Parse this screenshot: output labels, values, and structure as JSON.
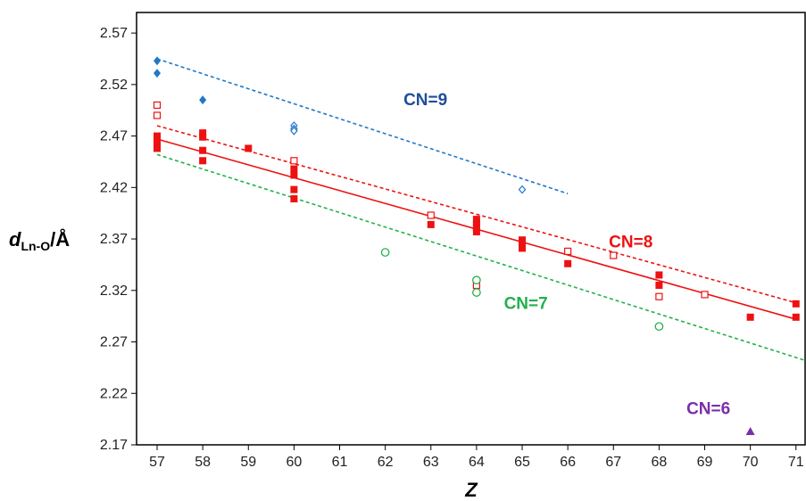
{
  "chart_data": {
    "type": "scatter",
    "title": "",
    "xlabel": "Z",
    "ylabel": {
      "main": "d",
      "sub": "Ln-O",
      "unit": "/Å"
    },
    "xlim": [
      56.55,
      71.2
    ],
    "ylim": [
      2.17,
      2.59
    ],
    "x_ticks": [
      "57",
      "58",
      "59",
      "60",
      "61",
      "62",
      "63",
      "64",
      "65",
      "66",
      "67",
      "68",
      "69",
      "70",
      "71"
    ],
    "y_ticks": [
      "2.17",
      "2.22",
      "2.27",
      "2.32",
      "2.37",
      "2.42",
      "2.47",
      "2.52",
      "2.57"
    ],
    "grid": false,
    "colors": {
      "cn9": "#1f78c8",
      "cn9_label": "#1f4e9a",
      "cn8": "#ee1111",
      "cn7": "#22b14c",
      "cn6": "#7b2fa8"
    },
    "series": [
      {
        "label_key": "cn9_filled",
        "marker": "diamond-filled",
        "color": "#1f78c8",
        "points": [
          [
            57,
            2.543
          ],
          [
            57,
            2.531
          ],
          [
            58,
            2.505
          ]
        ]
      },
      {
        "label_key": "cn9_open",
        "marker": "diamond-open",
        "color": "#1f78c8",
        "points": [
          [
            60,
            2.48
          ],
          [
            60,
            2.477
          ],
          [
            60,
            2.475
          ],
          [
            65,
            2.418
          ]
        ]
      },
      {
        "label_key": "cn8_filled",
        "marker": "square-filled",
        "color": "#ee1111",
        "points": [
          [
            57,
            2.47
          ],
          [
            57,
            2.466
          ],
          [
            57,
            2.462
          ],
          [
            57,
            2.458
          ],
          [
            58,
            2.473
          ],
          [
            58,
            2.469
          ],
          [
            58,
            2.456
          ],
          [
            58,
            2.446
          ],
          [
            59,
            2.458
          ],
          [
            60,
            2.438
          ],
          [
            60,
            2.432
          ],
          [
            60,
            2.418
          ],
          [
            60,
            2.409
          ],
          [
            63,
            2.384
          ],
          [
            64,
            2.389
          ],
          [
            64,
            2.385
          ],
          [
            64,
            2.381
          ],
          [
            64,
            2.377
          ],
          [
            65,
            2.369
          ],
          [
            65,
            2.365
          ],
          [
            65,
            2.361
          ],
          [
            66,
            2.346
          ],
          [
            68,
            2.335
          ],
          [
            68,
            2.325
          ],
          [
            70,
            2.294
          ],
          [
            71,
            2.307
          ],
          [
            71,
            2.294
          ]
        ]
      },
      {
        "label_key": "cn8_open",
        "marker": "square-open",
        "color": "#ee1111",
        "points": [
          [
            57,
            2.5
          ],
          [
            57,
            2.49
          ],
          [
            60,
            2.446
          ],
          [
            63,
            2.393
          ],
          [
            64,
            2.325
          ],
          [
            66,
            2.358
          ],
          [
            67,
            2.354
          ],
          [
            68,
            2.314
          ],
          [
            69,
            2.316
          ]
        ]
      },
      {
        "label_key": "cn7_open",
        "marker": "circle-open",
        "color": "#22b14c",
        "points": [
          [
            62,
            2.357
          ],
          [
            64,
            2.33
          ],
          [
            64,
            2.318
          ],
          [
            68,
            2.285
          ]
        ]
      },
      {
        "label_key": "cn6_filled",
        "marker": "triangle-filled",
        "color": "#7b2fa8",
        "points": [
          [
            70,
            2.183
          ]
        ]
      }
    ],
    "fit_lines": [
      {
        "color": "#1f78c8",
        "style": "dashed",
        "x": [
          57,
          66
        ],
        "y": [
          2.545,
          2.414
        ]
      },
      {
        "color": "#ee1111",
        "style": "dashed",
        "x": [
          57,
          71
        ],
        "y": [
          2.48,
          2.308
        ]
      },
      {
        "color": "#ee1111",
        "style": "solid",
        "x": [
          57,
          71
        ],
        "y": [
          2.467,
          2.292
        ]
      },
      {
        "color": "#22b14c",
        "style": "dashed",
        "x": [
          57,
          71.2
        ],
        "y": [
          2.452,
          2.252
        ]
      }
    ],
    "annotations": [
      {
        "text": "CN=9",
        "x": 62.4,
        "y": 2.5,
        "color": "#1f4e9a"
      },
      {
        "text": "CN=8",
        "x": 66.9,
        "y": 2.362,
        "color": "#ee1111"
      },
      {
        "text": "CN=7",
        "x": 64.6,
        "y": 2.302,
        "color": "#22b14c"
      },
      {
        "text": "CN=6",
        "x": 68.6,
        "y": 2.2,
        "color": "#7b2fa8"
      }
    ]
  }
}
